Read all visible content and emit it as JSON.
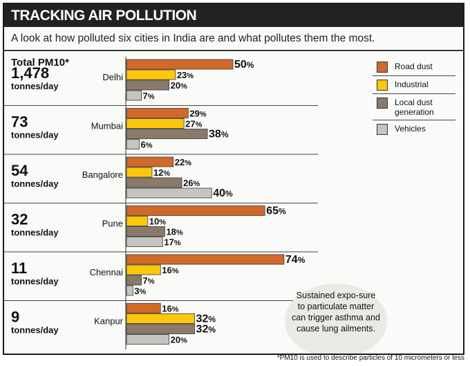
{
  "header": {
    "title": "TRACKING AIR POLLUTION",
    "subtitle": "A look at how polluted six cities in India are and what pollutes them the most."
  },
  "total_header": "Total PM10*",
  "footnote": "*PM10 is used to describe particles of 10 micrometers or less",
  "callout": "Sustained expo-sure to particulate matter can trigger asthma and cause lung ailments.",
  "chart_data": {
    "type": "bar",
    "orientation": "horizontal",
    "unit": "%",
    "categories": [
      "Delhi",
      "Mumbai",
      "Bangalore",
      "Pune",
      "Chennai",
      "Kanpur"
    ],
    "totals": [
      {
        "value": "1,478",
        "unit": "tonnes/day"
      },
      {
        "value": "73",
        "unit": "tonnes/day"
      },
      {
        "value": "54",
        "unit": "tonnes/day"
      },
      {
        "value": "32",
        "unit": "tonnes/day"
      },
      {
        "value": "11",
        "unit": "tonnes/day"
      },
      {
        "value": "9",
        "unit": "tonnes/day"
      }
    ],
    "series": [
      {
        "name": "Road dust",
        "color": "#d0692a",
        "values": [
          50,
          29,
          22,
          65,
          74,
          16
        ]
      },
      {
        "name": "Industrial",
        "color": "#fdc70c",
        "values": [
          23,
          27,
          12,
          10,
          16,
          32
        ]
      },
      {
        "name": "Local dust generation",
        "color": "#8a7a6c",
        "values": [
          20,
          38,
          26,
          18,
          7,
          32
        ]
      },
      {
        "name": "Vehicles",
        "color": "#c4c4c0",
        "values": [
          7,
          6,
          40,
          17,
          3,
          20
        ]
      }
    ],
    "legend_position": "top-right",
    "grid": false
  }
}
